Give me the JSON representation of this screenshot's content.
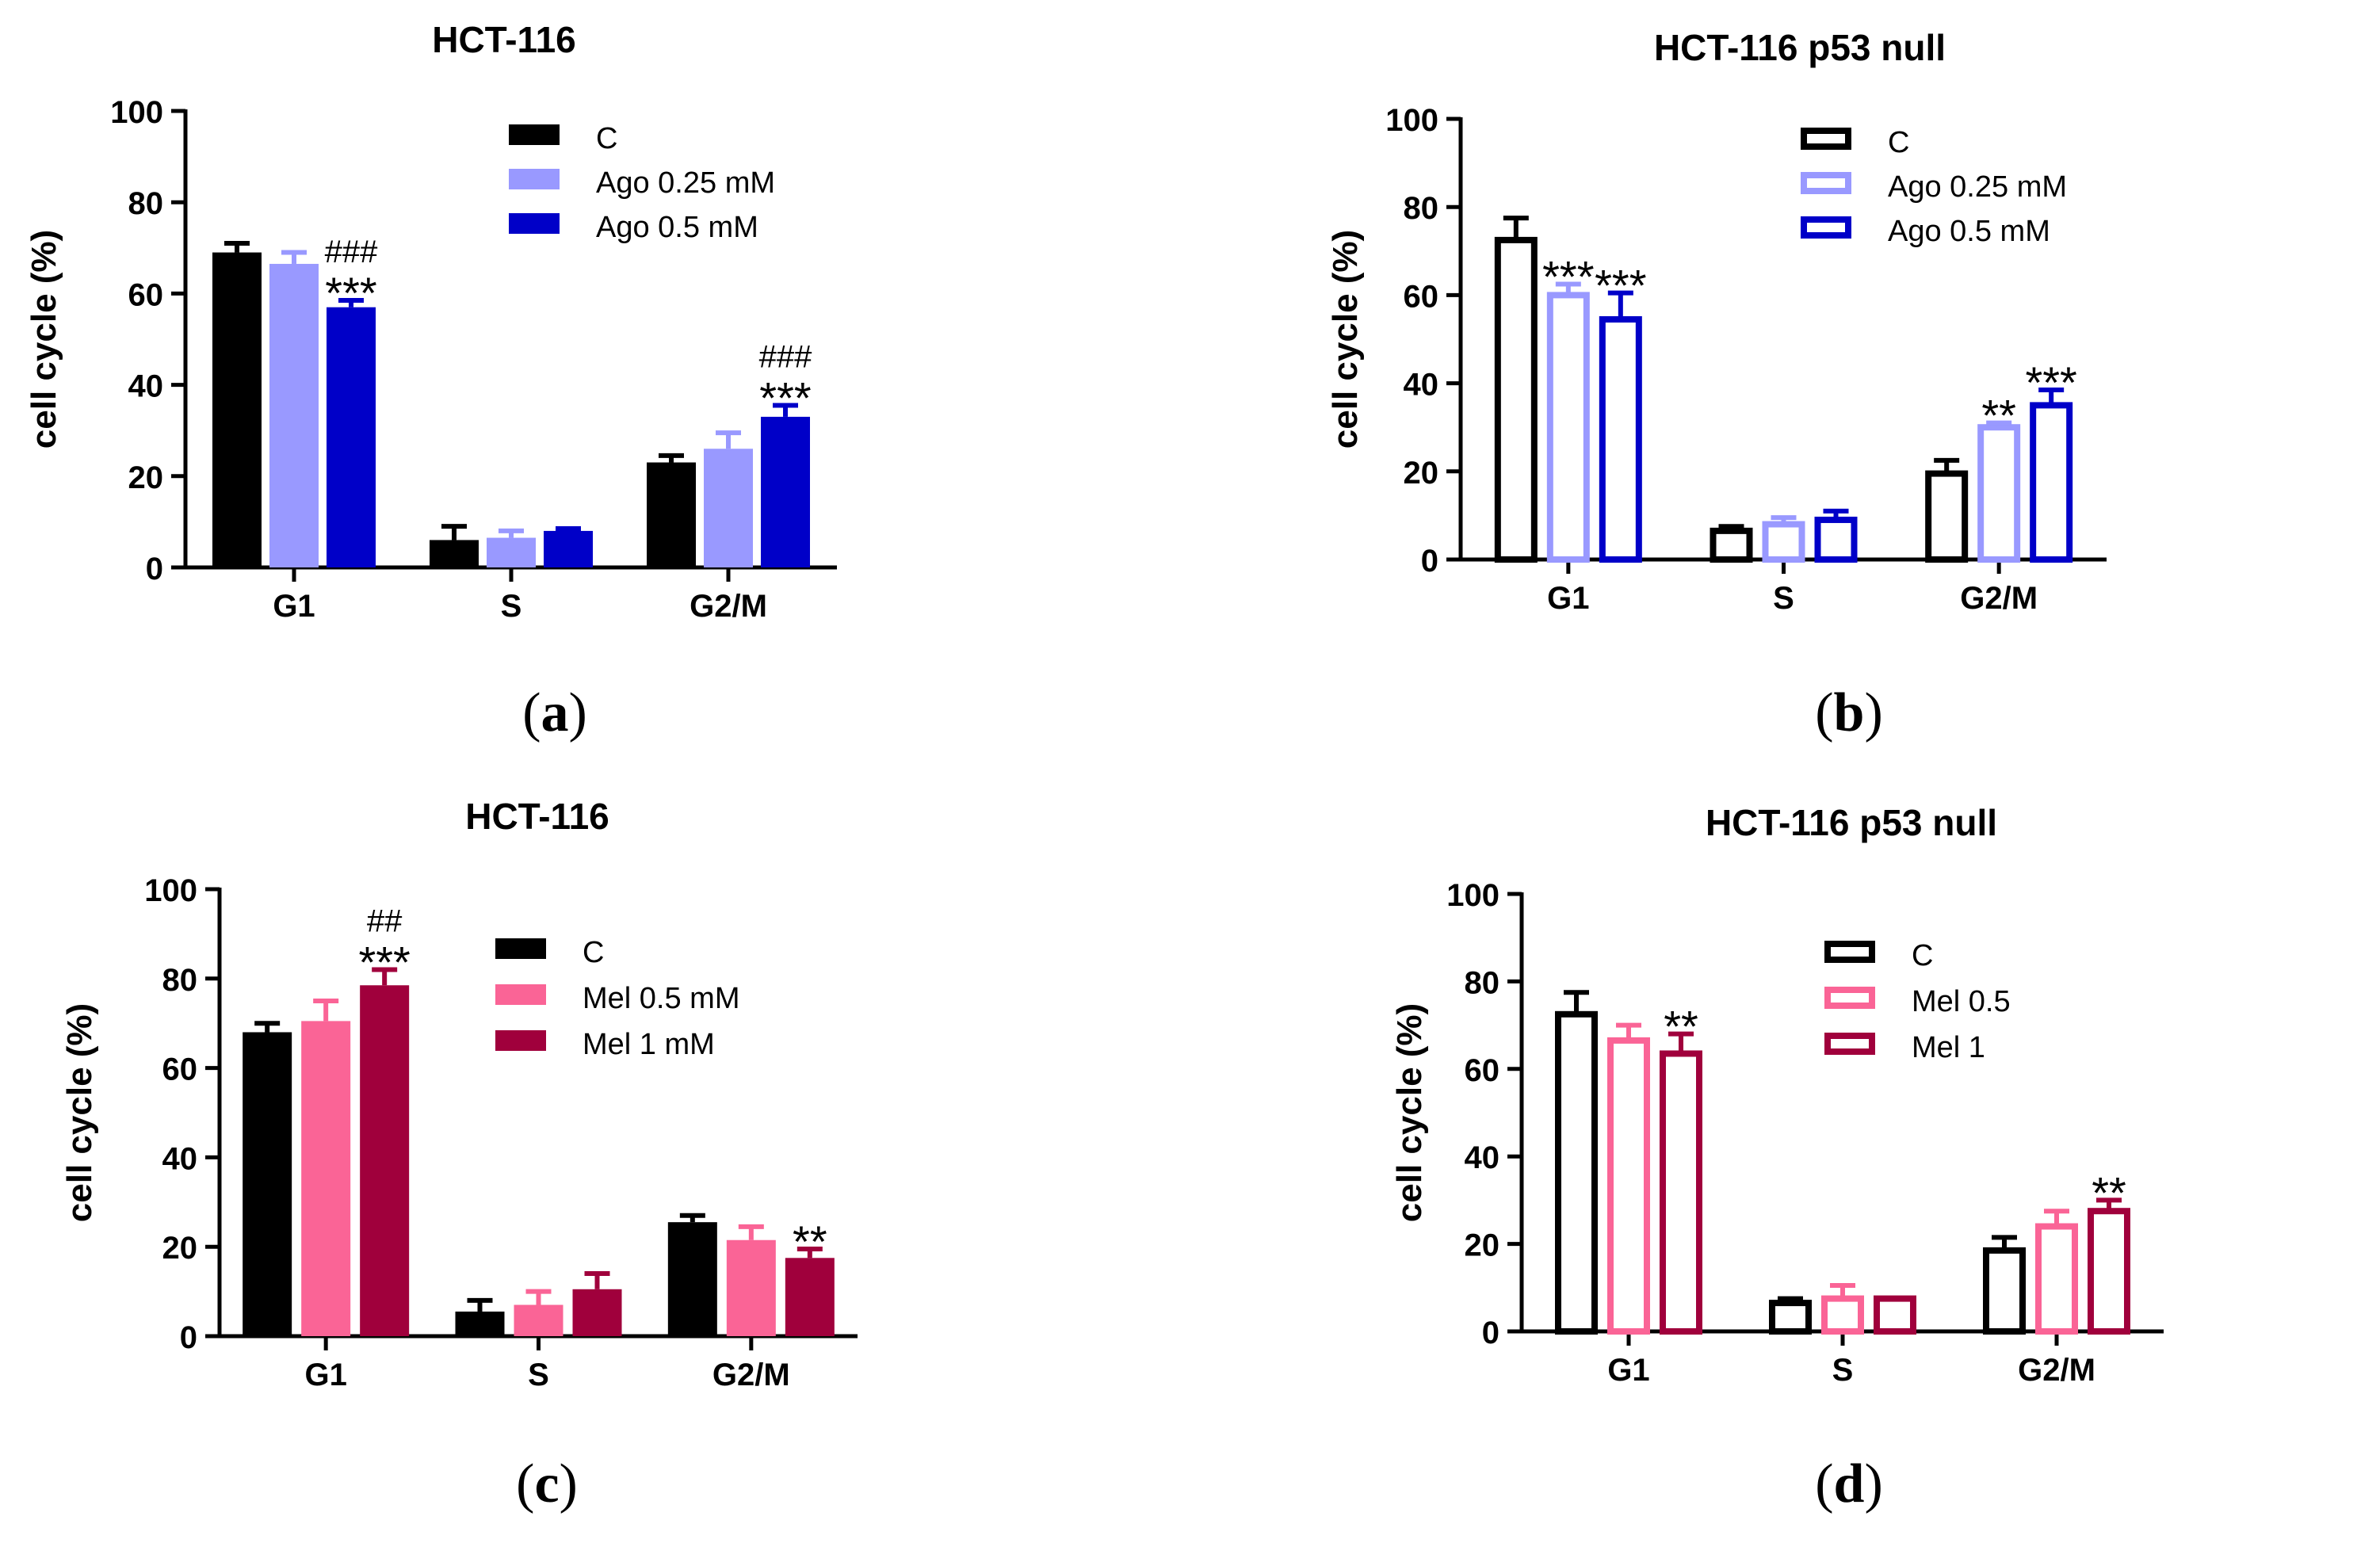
{
  "colors": {
    "black": "#000000",
    "ago_light": "#9999FF",
    "ago_dark": "#0000C8",
    "mel_light": "#FA6496",
    "mel_dark": "#A0003C"
  },
  "panel_labels": [
    {
      "open": "(",
      "letter": "a",
      "close": ")"
    },
    {
      "open": "(",
      "letter": "b",
      "close": ")"
    },
    {
      "open": "(",
      "letter": "c",
      "close": ")"
    },
    {
      "open": "(",
      "letter": "d",
      "close": ")"
    }
  ],
  "chart_data": [
    {
      "type": "bar",
      "style": "filled",
      "title": "HCT-116",
      "ylabel": "cell cycle (%)",
      "xlabel": "",
      "ylim": [
        0,
        100
      ],
      "yticks": [
        0,
        20,
        40,
        60,
        80,
        100
      ],
      "categories": [
        "G1",
        "S",
        "G2/M"
      ],
      "legend_position": "top-right",
      "series": [
        {
          "name": "C",
          "color": "#000000",
          "values": [
            69,
            6,
            23
          ],
          "errors": [
            2,
            3,
            1.5
          ]
        },
        {
          "name": "Ago 0.25 mM",
          "color": "#9999FF",
          "values": [
            66.5,
            6.5,
            26
          ],
          "errors": [
            2.5,
            1.5,
            3.5
          ]
        },
        {
          "name": "Ago 0.5 mM",
          "color": "#0000C8",
          "values": [
            57,
            8,
            33
          ],
          "errors": [
            1.5,
            0.5,
            2.5
          ]
        }
      ],
      "annotations": [
        {
          "category": "G1",
          "series": 2,
          "lines": [
            "###",
            "***"
          ]
        },
        {
          "category": "G2/M",
          "series": 2,
          "lines": [
            "###",
            "***"
          ]
        }
      ]
    },
    {
      "type": "bar",
      "style": "outline",
      "title": "HCT-116 p53 null",
      "ylabel": "cell cycle (%)",
      "xlabel": "",
      "ylim": [
        0,
        100
      ],
      "yticks": [
        0,
        20,
        40,
        60,
        80,
        100
      ],
      "categories": [
        "G1",
        "S",
        "G2/M"
      ],
      "legend_position": "top-right",
      "series": [
        {
          "name": "C",
          "color": "#000000",
          "values": [
            72.5,
            6.5,
            19.5
          ],
          "errors": [
            5,
            1,
            3
          ]
        },
        {
          "name": "Ago 0.25 mM",
          "color": "#9999FF",
          "values": [
            60,
            8,
            30
          ],
          "errors": [
            2.5,
            1.5,
            1
          ]
        },
        {
          "name": "Ago 0.5 mM",
          "color": "#0000C8",
          "values": [
            54.5,
            9,
            35
          ],
          "errors": [
            6,
            2,
            3.5
          ]
        }
      ],
      "annotations": [
        {
          "category": "G1",
          "series": 1,
          "lines": [
            "***"
          ]
        },
        {
          "category": "G1",
          "series": 2,
          "lines": [
            "***"
          ]
        },
        {
          "category": "G2/M",
          "series": 1,
          "lines": [
            "**"
          ]
        },
        {
          "category": "G2/M",
          "series": 2,
          "lines": [
            "***"
          ]
        }
      ]
    },
    {
      "type": "bar",
      "style": "filled",
      "title": "HCT-116",
      "ylabel": "cell cycle (%)",
      "xlabel": "",
      "ylim": [
        0,
        100
      ],
      "yticks": [
        0,
        20,
        40,
        60,
        80,
        100
      ],
      "categories": [
        "G1",
        "S",
        "G2/M"
      ],
      "legend_position": "top-right",
      "series": [
        {
          "name": "C",
          "color": "#000000",
          "values": [
            68,
            5.5,
            25.5
          ],
          "errors": [
            2,
            2.5,
            1.5
          ]
        },
        {
          "name": "Mel 0.5 mM",
          "color": "#FA6496",
          "values": [
            70.5,
            7,
            21.5
          ],
          "errors": [
            4.5,
            3,
            3
          ]
        },
        {
          "name": "Mel 1 mM",
          "color": "#A0003C",
          "values": [
            78.5,
            10.5,
            17.5
          ],
          "errors": [
            3.5,
            3.5,
            2
          ]
        }
      ],
      "annotations": [
        {
          "category": "G1",
          "series": 2,
          "lines": [
            "##",
            "***"
          ]
        },
        {
          "category": "G2/M",
          "series": 2,
          "lines": [
            "**"
          ]
        }
      ]
    },
    {
      "type": "bar",
      "style": "outline",
      "title": "HCT-116 p53 null",
      "ylabel": "cell cycle (%)",
      "xlabel": "",
      "ylim": [
        0,
        100
      ],
      "yticks": [
        0,
        20,
        40,
        60,
        80,
        100
      ],
      "categories": [
        "G1",
        "S",
        "G2/M"
      ],
      "legend_position": "top-right",
      "series": [
        {
          "name": "C",
          "color": "#000000",
          "values": [
            72.5,
            6.5,
            18.5
          ],
          "errors": [
            5,
            1,
            3
          ]
        },
        {
          "name": "Mel 0.5",
          "color": "#FA6496",
          "values": [
            66.5,
            7.5,
            24
          ],
          "errors": [
            3.5,
            3,
            3.5
          ]
        },
        {
          "name": "Mel 1",
          "color": "#A0003C",
          "values": [
            63.5,
            7.5,
            27.5
          ],
          "errors": [
            4.5,
            0,
            2.5
          ]
        }
      ],
      "annotations": [
        {
          "category": "G1",
          "series": 2,
          "lines": [
            "**"
          ]
        },
        {
          "category": "G2/M",
          "series": 2,
          "lines": [
            "**"
          ]
        }
      ]
    }
  ]
}
